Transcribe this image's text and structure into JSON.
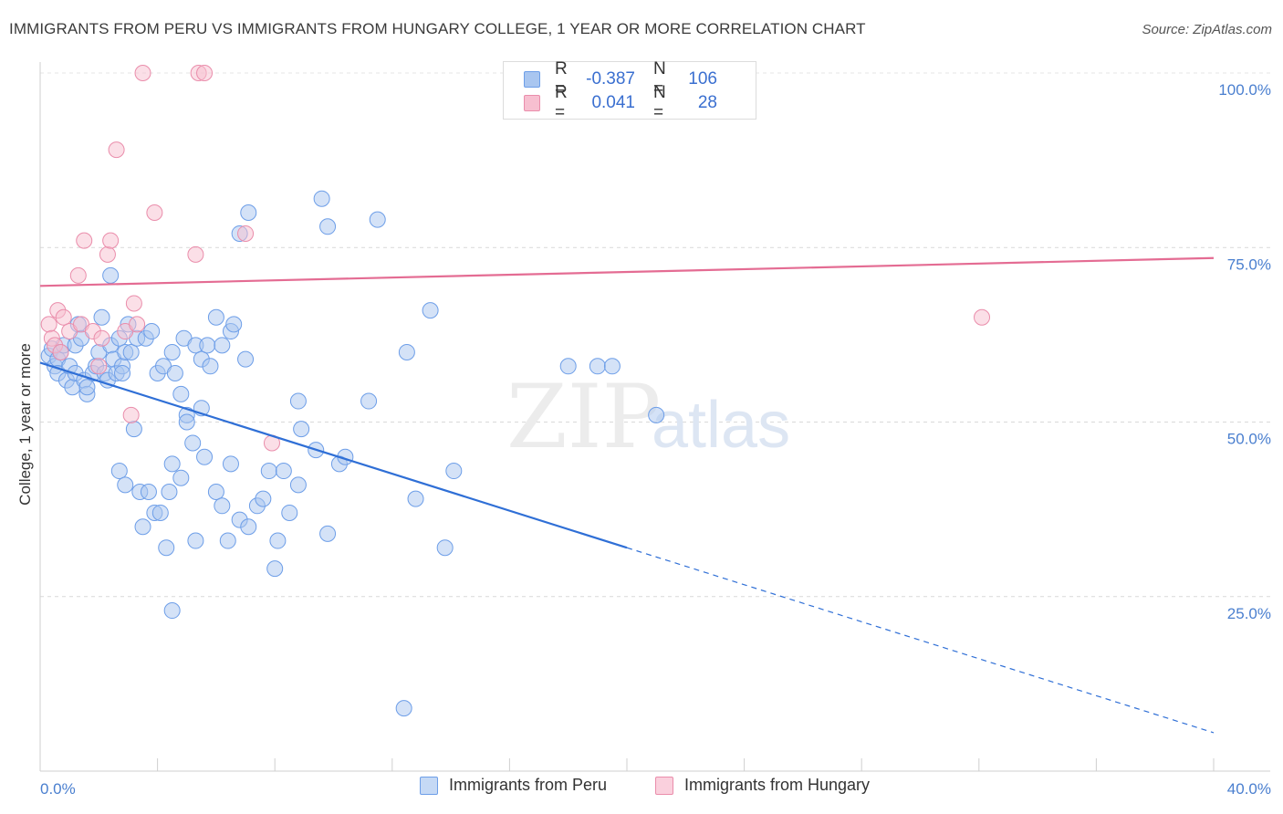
{
  "title": "IMMIGRANTS FROM PERU VS IMMIGRANTS FROM HUNGARY COLLEGE, 1 YEAR OR MORE CORRELATION CHART",
  "source": "Source: ZipAtlas.com",
  "watermark": {
    "zip": "ZIP",
    "atlas": "atlas"
  },
  "legend": {
    "rows": [
      {
        "r_label": "R =",
        "r_value": "-0.387",
        "n_label": "N =",
        "n_value": "106",
        "color": "#a9c6f0",
        "border": "#6d9ee8"
      },
      {
        "r_label": "R =",
        "r_value": "0.041",
        "n_label": "N =",
        "n_value": "28",
        "color": "#f7bfd0",
        "border": "#ea8dab"
      }
    ]
  },
  "bottom_legend": [
    {
      "label": "Immigrants from Peru",
      "color": "#c5d9f5",
      "border": "#6d9ee8"
    },
    {
      "label": "Immigrants from Hungary",
      "color": "#fad0dd",
      "border": "#ea8dab"
    }
  ],
  "chart_data": {
    "type": "scatter",
    "title": "IMMIGRANTS FROM PERU VS IMMIGRANTS FROM HUNGARY COLLEGE, 1 YEAR OR MORE CORRELATION CHART",
    "xlabel": "",
    "ylabel": "College, 1 year or more",
    "xlim": [
      0,
      40
    ],
    "ylim": [
      0,
      100
    ],
    "x_tick_labels": [
      "0.0%",
      "40.0%"
    ],
    "y_ticks": [
      25,
      50,
      75,
      100
    ],
    "y_tick_labels": [
      "25.0%",
      "50.0%",
      "75.0%",
      "100.0%"
    ],
    "grid": true,
    "series": [
      {
        "name": "Immigrants from Peru",
        "color": "#a9c6f0",
        "stroke": "#6d9ee8",
        "trend": {
          "x0": 0,
          "y0": 58.5,
          "x1": 20,
          "y1": 32.0,
          "dash_to_x": 40,
          "dash_to_y": 5.5,
          "color": "#2f6fd6"
        },
        "points": [
          [
            0.3,
            59.5
          ],
          [
            0.4,
            60.5
          ],
          [
            0.5,
            58
          ],
          [
            0.6,
            59
          ],
          [
            0.6,
            57
          ],
          [
            0.7,
            60
          ],
          [
            0.8,
            61
          ],
          [
            0.9,
            56
          ],
          [
            1.0,
            58
          ],
          [
            1.1,
            55
          ],
          [
            1.2,
            57
          ],
          [
            1.2,
            61
          ],
          [
            1.3,
            64
          ],
          [
            1.4,
            62
          ],
          [
            1.5,
            56
          ],
          [
            1.6,
            54
          ],
          [
            1.6,
            55
          ],
          [
            1.8,
            57
          ],
          [
            1.9,
            58
          ],
          [
            2.0,
            60
          ],
          [
            2.1,
            65
          ],
          [
            2.2,
            57
          ],
          [
            2.3,
            56
          ],
          [
            2.4,
            61
          ],
          [
            2.5,
            59
          ],
          [
            2.6,
            57
          ],
          [
            2.7,
            62
          ],
          [
            2.8,
            58
          ],
          [
            2.9,
            60
          ],
          [
            3.0,
            64
          ],
          [
            2.4,
            71
          ],
          [
            2.8,
            57
          ],
          [
            3.1,
            60
          ],
          [
            3.3,
            62
          ],
          [
            3.6,
            62
          ],
          [
            3.8,
            63
          ],
          [
            4.0,
            57
          ],
          [
            4.2,
            58
          ],
          [
            4.5,
            60
          ],
          [
            4.6,
            57
          ],
          [
            4.9,
            62
          ],
          [
            5.3,
            61
          ],
          [
            5.5,
            59
          ],
          [
            5.7,
            61
          ],
          [
            5.8,
            58
          ],
          [
            6.0,
            65
          ],
          [
            6.2,
            61
          ],
          [
            6.5,
            63
          ],
          [
            6.6,
            64
          ],
          [
            7.0,
            59
          ],
          [
            4.8,
            54
          ],
          [
            5.0,
            51
          ],
          [
            3.2,
            49
          ],
          [
            2.7,
            43
          ],
          [
            2.9,
            41
          ],
          [
            3.4,
            40
          ],
          [
            3.7,
            40
          ],
          [
            3.9,
            37
          ],
          [
            3.5,
            35
          ],
          [
            4.1,
            37
          ],
          [
            4.4,
            40
          ],
          [
            4.5,
            44
          ],
          [
            4.8,
            42
          ],
          [
            5.2,
            47
          ],
          [
            5.0,
            50
          ],
          [
            5.5,
            52
          ],
          [
            5.6,
            45
          ],
          [
            6.0,
            40
          ],
          [
            6.2,
            38
          ],
          [
            6.4,
            33
          ],
          [
            6.8,
            36
          ],
          [
            7.1,
            35
          ],
          [
            7.4,
            38
          ],
          [
            7.6,
            39
          ],
          [
            7.8,
            43
          ],
          [
            8.1,
            33
          ],
          [
            8.3,
            43
          ],
          [
            8.5,
            37
          ],
          [
            8.8,
            41
          ],
          [
            9.4,
            46
          ],
          [
            9.8,
            34
          ],
          [
            8.8,
            53
          ],
          [
            8.9,
            49
          ],
          [
            9.6,
            82
          ],
          [
            7.1,
            80
          ],
          [
            9.8,
            78
          ],
          [
            6.8,
            77
          ],
          [
            11.5,
            79
          ],
          [
            11.2,
            53
          ],
          [
            10.2,
            44
          ],
          [
            8.0,
            29
          ],
          [
            12.5,
            60
          ],
          [
            10.4,
            45
          ],
          [
            12.8,
            39
          ],
          [
            14.1,
            43
          ],
          [
            18.0,
            58
          ],
          [
            13.3,
            66
          ],
          [
            19.0,
            58
          ],
          [
            19.5,
            58
          ],
          [
            21,
            51
          ],
          [
            6.5,
            44
          ],
          [
            5.3,
            33
          ],
          [
            4.3,
            32
          ],
          [
            4.5,
            23
          ],
          [
            12.4,
            9
          ],
          [
            13.8,
            32
          ]
        ]
      },
      {
        "name": "Immigrants from Hungary",
        "color": "#f7bfd0",
        "stroke": "#ea8dab",
        "trend": {
          "x0": 0,
          "y0": 69.5,
          "x1": 40,
          "y1": 73.5,
          "color": "#e46c93"
        },
        "points": [
          [
            0.3,
            64
          ],
          [
            0.4,
            62
          ],
          [
            0.5,
            61
          ],
          [
            0.6,
            66
          ],
          [
            0.7,
            60
          ],
          [
            0.8,
            65
          ],
          [
            1.0,
            63
          ],
          [
            1.3,
            71
          ],
          [
            1.4,
            64
          ],
          [
            1.5,
            76
          ],
          [
            1.8,
            63
          ],
          [
            2.0,
            58
          ],
          [
            2.1,
            62
          ],
          [
            2.3,
            74
          ],
          [
            2.4,
            76
          ],
          [
            2.6,
            89
          ],
          [
            2.9,
            63
          ],
          [
            3.1,
            51
          ],
          [
            3.2,
            67
          ],
          [
            3.3,
            64
          ],
          [
            3.5,
            100
          ],
          [
            3.9,
            80
          ],
          [
            5.3,
            74
          ],
          [
            5.4,
            100
          ],
          [
            5.6,
            100
          ],
          [
            7.0,
            77
          ],
          [
            7.9,
            47
          ],
          [
            32.1,
            65
          ]
        ]
      }
    ]
  }
}
